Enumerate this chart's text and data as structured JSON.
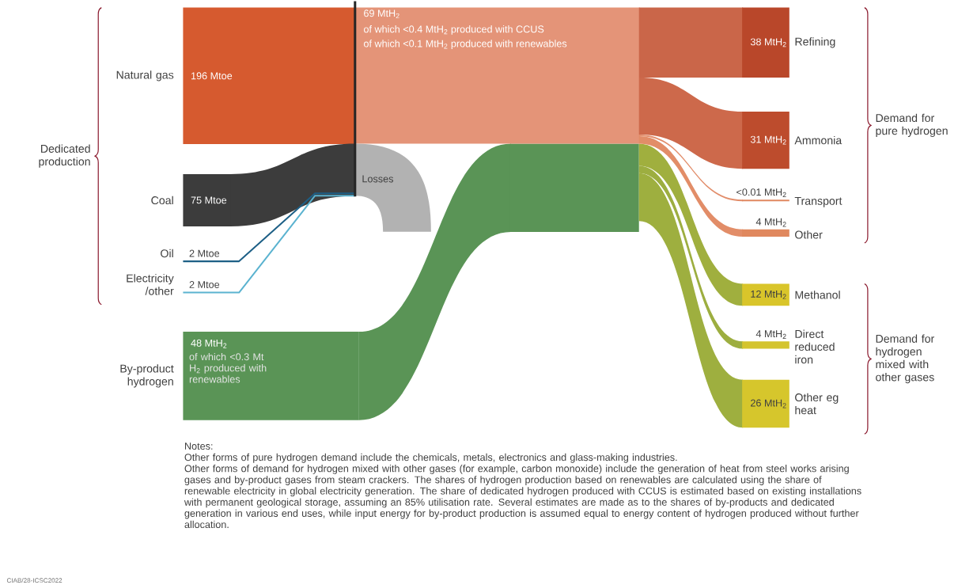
{
  "chart_data": {
    "type": "other",
    "categories": [
      "Natural gas",
      "Coal",
      "Oil",
      "Electricity /other",
      "By-product hydrogen",
      "Refining",
      "Ammonia",
      "Transport",
      "Other",
      "Methanol",
      "Direct reduced iron",
      "Other eg heat"
    ],
    "values": [
      196,
      75,
      2,
      2,
      48,
      38,
      31,
      0.01,
      4,
      12,
      4,
      26
    ],
    "value_labels": [
      "196 Mtoe",
      "75 Mtoe",
      "2 Mtoe",
      "2 Mtoe",
      "48 MtH$_{2}$",
      "38 MtH$_{2}$",
      "31 MtH$_{2}$",
      "<0.01 MtH$_{2}$",
      "4 MtH$_{2}$",
      "12 MtH$_{2}$",
      "4 MtH$_{2}$",
      "26 MtH$_{2}$"
    ],
    "colors": [
      "#d65a2f",
      "#3c3c3c",
      "#1d5f86",
      "#5bb3d0",
      "#5a9456",
      "#b9472a",
      "#bd4c2d",
      "#e08860",
      "#e0885e",
      "#d9c52a",
      "#d4c42e",
      "#d6c62c"
    ],
    "annotations": [
      "Dedicated production",
      "Demand for pure hydrogen",
      "Demand for hydrogen mixed with other gases",
      "Losses",
      "69 MtH$_{2}$",
      "of which <0.4 MtH$_{2}$ produced with CCUS",
      "of which <0.1 MtH$_{2}$ produced with renewables",
      "of which <0.3 Mt H$_{2}$ produced with renewables",
      "Notes:",
      "Other forms of pure hydrogen demand include the chemicals, metals, electronics and glass-making industries.",
      "Other forms of demand for hydrogen mixed with other gases (for example, carbon monoxide) include the generation of heat from steel works arising gases and by-product gases from steam crackers. The shares of hydrogen production based on renewables are calculated using the share of renewable electricity in global electricity generation. The share of dedicated hydrogen produced with CCUS is estimated based on existing installations with permanent geological storage, assuming an 85% utilisation rate. Several estimates are made as to the shares of by-products and dedicated generation in various end uses, while input energy for by-product production is assumed equal to energy content of hydrogen produced without further allocation.",
      "CIAB/28-ICSC2022"
    ]
  }
}
